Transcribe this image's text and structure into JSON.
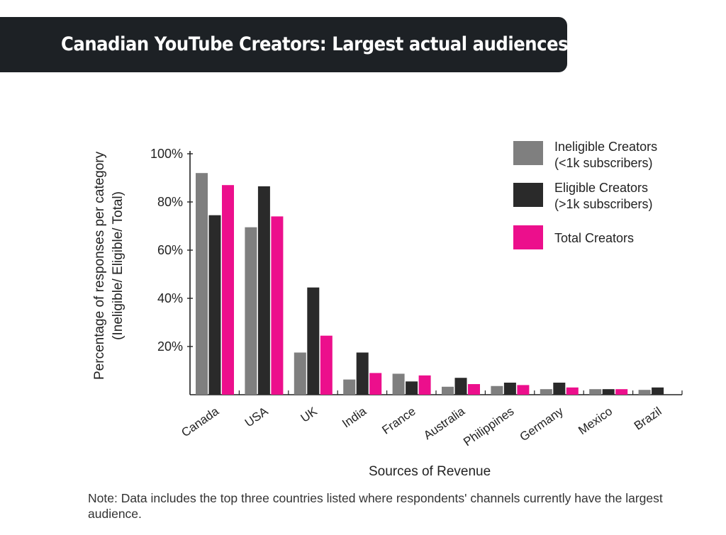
{
  "title": "Canadian YouTube Creators: Largest actual audiences",
  "note": "Note: Data includes the top three countries listed where respondents'  channels currently have the largest audience.",
  "colors": {
    "ineligible": "#7f7f7f",
    "eligible": "#2a2a2a",
    "total": "#ec0f8c",
    "title_bg": "#1d2125"
  },
  "chart_data": {
    "type": "bar",
    "xlabel": "Sources of Revenue",
    "ylabel_lines": [
      "Percentage of responses per category",
      "(Ineligible/ Eligible/ Total)"
    ],
    "ylim": [
      0,
      100
    ],
    "yticks": [
      "100%",
      "80%",
      "60%",
      "40%",
      "20%"
    ],
    "ytick_values": [
      100,
      80,
      60,
      40,
      20
    ],
    "categories": [
      "Canada",
      "USA",
      "UK",
      "India",
      "France",
      "Australia",
      "Philippines",
      "Germany",
      "Mexico",
      "Brazil"
    ],
    "legend_position": "top-right",
    "series": [
      {
        "name": "Ineligible Creators (<1k subscribers)",
        "name_lines": [
          "Ineligible Creators",
          "(<1k subscribers)"
        ],
        "color": "#7f7f7f",
        "values": [
          92,
          69.5,
          17.5,
          6.3,
          8.7,
          3.3,
          3.6,
          2.3,
          2.3,
          2
        ]
      },
      {
        "name": "Eligible Creators (>1k subscribers)",
        "name_lines": [
          "Eligible Creators",
          "(>1k subscribers)"
        ],
        "color": "#2a2a2a",
        "values": [
          74.5,
          86.5,
          44.5,
          17.5,
          5.5,
          7,
          5,
          5,
          2.3,
          3
        ]
      },
      {
        "name": "Total Creators",
        "name_lines": [
          "Total Creators"
        ],
        "color": "#ec0f8c",
        "values": [
          87,
          74,
          24.5,
          9,
          8,
          4.4,
          4,
          3,
          2.3,
          null
        ]
      }
    ]
  }
}
